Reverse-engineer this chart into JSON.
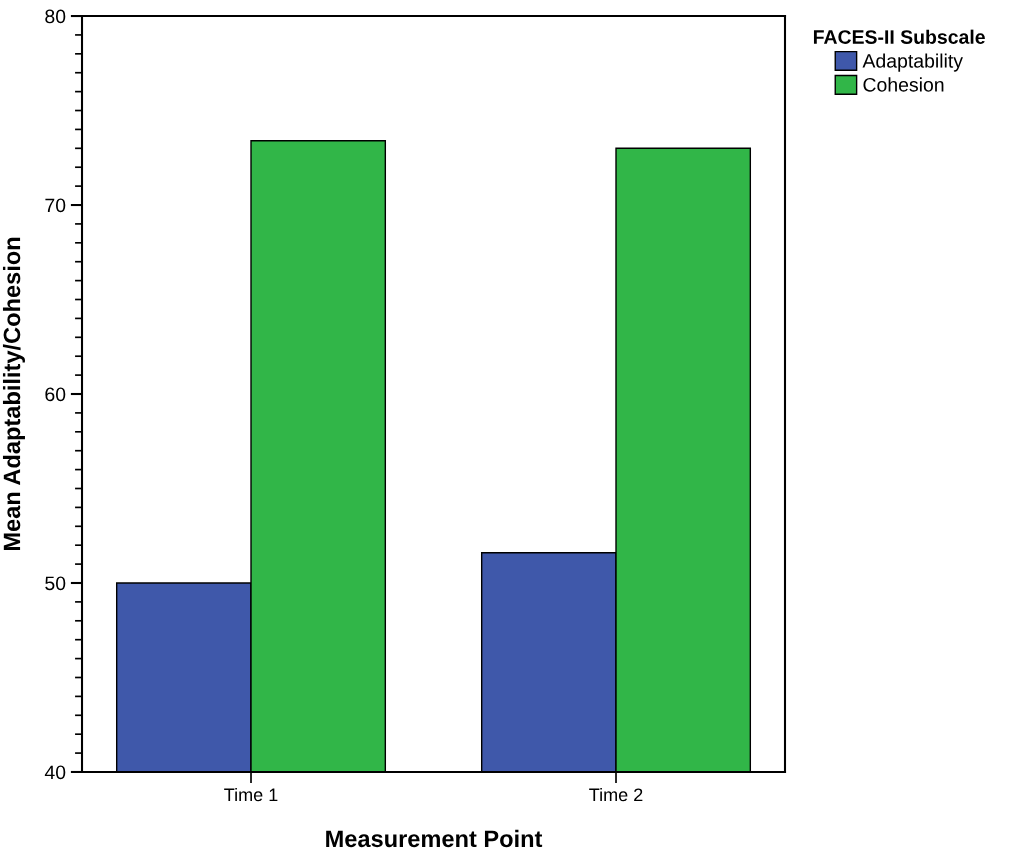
{
  "chart_data": {
    "type": "bar",
    "xlabel": "Measurement Point",
    "ylabel": "Mean Adaptability/Cohesion",
    "legend_title": "FACES-II Subscale",
    "categories": [
      "Time 1",
      "Time 2"
    ],
    "series": [
      {
        "name": "Adaptability",
        "color": "#3f58aa",
        "values": [
          50.0,
          51.6
        ]
      },
      {
        "name": "Cohesion",
        "color": "#31b648",
        "values": [
          73.4,
          73.0
        ]
      }
    ],
    "ylim": [
      40,
      80
    ],
    "yticks": [
      40,
      50,
      60,
      70,
      80
    ],
    "grid": false,
    "legend": "right"
  }
}
